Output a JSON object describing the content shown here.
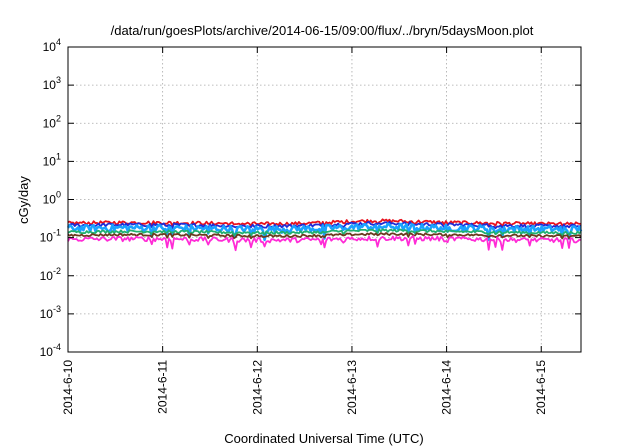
{
  "chart_data": {
    "type": "line",
    "title": "/data/run/goesPlots/archive/2014-06-15/09:00/flux/../bryn/5daysMoon.plot",
    "xlabel": "Coordinated Universal Time (UTC)",
    "ylabel": "cGy/day",
    "yscale": "log",
    "ylim": [
      0.0001,
      10000
    ],
    "xlim": [
      0,
      5.42
    ],
    "grid": true,
    "legend": "none",
    "x_ticks": [
      {
        "value": 0,
        "label": "2014-6-10"
      },
      {
        "value": 1,
        "label": "2014-6-11"
      },
      {
        "value": 2,
        "label": "2014-6-12"
      },
      {
        "value": 3,
        "label": "2014-6-13"
      },
      {
        "value": 4,
        "label": "2014-6-14"
      },
      {
        "value": 5,
        "label": "2014-6-15"
      }
    ],
    "y_ticks": [
      {
        "value": 0.0001,
        "base": "10",
        "exp": "-4"
      },
      {
        "value": 0.001,
        "base": "10",
        "exp": "-3"
      },
      {
        "value": 0.01,
        "base": "10",
        "exp": "-2"
      },
      {
        "value": 0.1,
        "base": "10",
        "exp": "-1"
      },
      {
        "value": 1,
        "base": "10",
        "exp": "0"
      },
      {
        "value": 10,
        "base": "10",
        "exp": "1"
      },
      {
        "value": 100,
        "base": "10",
        "exp": "2"
      },
      {
        "value": 1000,
        "base": "10",
        "exp": "3"
      },
      {
        "value": 10000,
        "base": "10",
        "exp": "4"
      }
    ],
    "series": [
      {
        "color": "#e8121e",
        "level": 0.24,
        "spread": 0.1,
        "drift": 0.13
      },
      {
        "color": "#1f2bd6",
        "level": 0.21,
        "spread": 0.1,
        "drift": 0.12
      },
      {
        "color": "#1aa3ff",
        "level": 0.175,
        "spread": 0.2,
        "drift": 0.1
      },
      {
        "color": "#20b070",
        "level": 0.14,
        "spread": 0.08,
        "drift": 0.08
      },
      {
        "color": "#6b3a1e",
        "level": 0.115,
        "spread": 0.07,
        "drift": 0.06
      },
      {
        "color": "#ff2bd6",
        "level": 0.09,
        "spread": 0.14,
        "drift": 0.05
      }
    ]
  }
}
